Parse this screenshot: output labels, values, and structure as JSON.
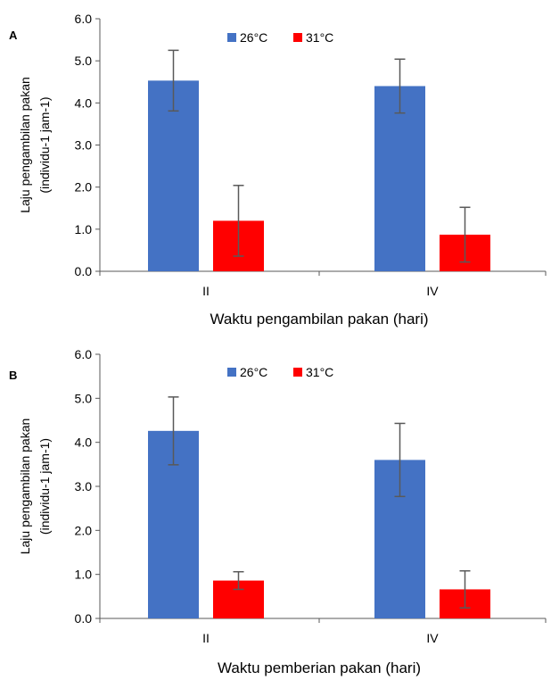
{
  "colors": {
    "series_26": "#4472C4",
    "series_31": "#FF0000",
    "axis": "#595959",
    "error_bar": "#595959"
  },
  "chart_data": [
    {
      "panel_label": "A",
      "type": "bar",
      "categories": [
        "II",
        "IV"
      ],
      "series": [
        {
          "name": "26°C",
          "color": "#4472C4",
          "values": [
            4.53,
            4.4
          ],
          "errors": [
            0.72,
            0.64
          ]
        },
        {
          "name": "31°C",
          "color": "#FF0000",
          "values": [
            1.2,
            0.87
          ],
          "errors": [
            0.84,
            0.65
          ]
        }
      ],
      "ylim": [
        0,
        6
      ],
      "yticks": [
        "0.0",
        "1.0",
        "2.0",
        "3.0",
        "4.0",
        "5.0",
        "6.0"
      ],
      "ylabel_line1": "Laju pengambilan pakan",
      "ylabel_line2": "(individu-1 jam-1)",
      "xlabel": "Waktu pengambilan pakan (hari)",
      "legend_position": "top-center",
      "grid": false
    },
    {
      "panel_label": "B",
      "type": "bar",
      "categories": [
        "II",
        "IV"
      ],
      "series": [
        {
          "name": "26°C",
          "color": "#4472C4",
          "values": [
            4.26,
            3.6
          ],
          "errors": [
            0.77,
            0.83
          ]
        },
        {
          "name": "31°C",
          "color": "#FF0000",
          "values": [
            0.86,
            0.66
          ],
          "errors": [
            0.2,
            0.42
          ]
        }
      ],
      "ylim": [
        0,
        6
      ],
      "yticks": [
        "0.0",
        "1.0",
        "2.0",
        "3.0",
        "4.0",
        "5.0",
        "6.0"
      ],
      "ylabel_line1": "Laju pengambilan pakan",
      "ylabel_line2": "(individu-1 jam-1)",
      "xlabel": "Waktu pemberian pakan (hari)",
      "legend_position": "top-center",
      "grid": false
    }
  ]
}
